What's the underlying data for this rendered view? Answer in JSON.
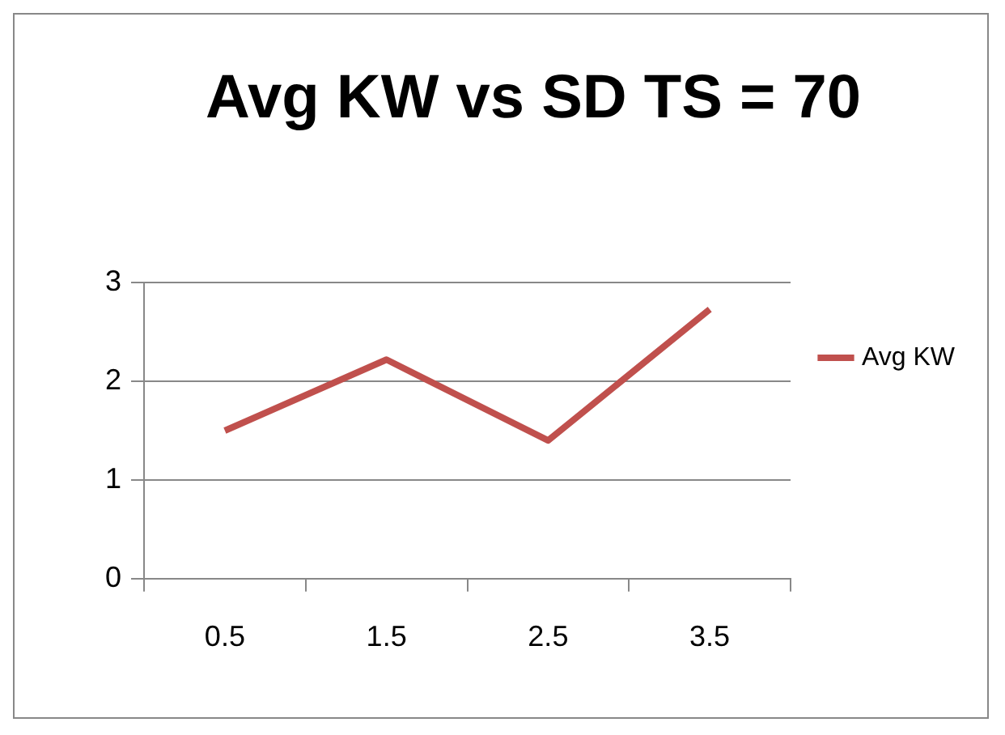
{
  "chart_data": {
    "type": "line",
    "title": "Avg KW vs SD TS = 70",
    "categories": [
      "0.5",
      "1.5",
      "2.5",
      "3.5"
    ],
    "series": [
      {
        "name": "Avg KW",
        "color": "#c0504d",
        "values": [
          1.5,
          2.22,
          1.4,
          2.73
        ]
      }
    ],
    "ylim": [
      0,
      3
    ],
    "yticks": [
      0,
      1,
      2,
      3
    ],
    "grid": "y",
    "legend": "right",
    "marker": "none"
  }
}
